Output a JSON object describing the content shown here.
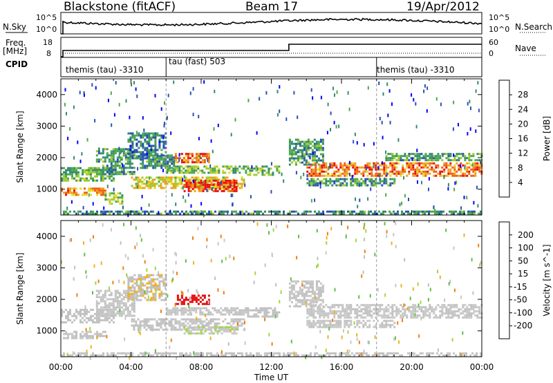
{
  "header": {
    "station": "Blackstone (fitACF)",
    "beam": "Beam 17",
    "date": "19/Apr/2012"
  },
  "meta_panel": {
    "nsky_label": "N.Sky",
    "nsearch_label": "N.Search",
    "freq_label": "Freq.",
    "freq_unit": "[MHz]",
    "nave_label": "Nave",
    "cpid_label": "CPID",
    "left_ticks": {
      "top": "10^5",
      "bottom": "10^0",
      "freq_top": "18",
      "freq_bottom": "8"
    },
    "right_ticks": {
      "top": "10^5",
      "bottom": "10^0",
      "nave_top": "60",
      "nave_bottom": "0"
    },
    "cpid_segments": [
      {
        "label": "themis (tau) -3310",
        "start_hour": 0
      },
      {
        "label": "tau (fast) 503",
        "start_hour": 6
      },
      {
        "label": "themis (tau) -3310",
        "start_hour": 18
      }
    ]
  },
  "chart_data": [
    {
      "type": "heatmap",
      "xlabel": "Time UT",
      "ylabel": "Slant Range [km]",
      "x_ticks": [
        "00:00",
        "04:00",
        "08:00",
        "12:00",
        "16:00",
        "20:00",
        "00:00"
      ],
      "xlim_hours": [
        0,
        24
      ],
      "y_ticks": [
        1000,
        2000,
        3000,
        4000
      ],
      "ylim": [
        180,
        4500
      ],
      "colorbar": {
        "label": "Power [dB]",
        "ticks": [
          "4",
          "8",
          "12",
          "16",
          "20",
          "24",
          "28"
        ],
        "range": [
          0,
          30
        ],
        "colors": [
          "#0000ff",
          "#2850b4",
          "#338a70",
          "#4ca84c",
          "#9ccc2c",
          "#e6d828",
          "#f0a020",
          "#f06010",
          "#e81010"
        ]
      },
      "bands": [
        {
          "t": [
            0.0,
            2.5
          ],
          "r": [
            850,
            1050
          ],
          "level": 22
        },
        {
          "t": [
            0.0,
            3.0
          ],
          "r": [
            1300,
            1700
          ],
          "level": 12
        },
        {
          "t": [
            2.0,
            4.2
          ],
          "r": [
            1500,
            2300
          ],
          "level": 10
        },
        {
          "t": [
            3.8,
            6.0
          ],
          "r": [
            2000,
            2800
          ],
          "level": 8
        },
        {
          "t": [
            2.5,
            3.5
          ],
          "r": [
            550,
            900
          ],
          "level": 14
        },
        {
          "t": [
            4.0,
            10.5
          ],
          "r": [
            1050,
            1400
          ],
          "level": 18
        },
        {
          "t": [
            7.0,
            10.0
          ],
          "r": [
            950,
            1300
          ],
          "level": 27
        },
        {
          "t": [
            4.5,
            6.5
          ],
          "r": [
            1700,
            2100
          ],
          "level": 9
        },
        {
          "t": [
            6.5,
            8.5
          ],
          "r": [
            1850,
            2150
          ],
          "level": 24
        },
        {
          "t": [
            6.0,
            10.5
          ],
          "r": [
            1500,
            1750
          ],
          "level": 14
        },
        {
          "t": [
            10.5,
            12.5
          ],
          "r": [
            1450,
            1750
          ],
          "level": 13
        },
        {
          "t": [
            13.0,
            15.0
          ],
          "r": [
            1800,
            2600
          ],
          "level": 10
        },
        {
          "t": [
            14.0,
            24.0
          ],
          "r": [
            1450,
            1850
          ],
          "level": 24
        },
        {
          "t": [
            14.0,
            19.0
          ],
          "r": [
            1150,
            1350
          ],
          "level": 10
        },
        {
          "t": [
            18.5,
            24.0
          ],
          "r": [
            1900,
            2150
          ],
          "level": 11
        },
        {
          "t": [
            0.0,
            24.0
          ],
          "r": [
            200,
            320
          ],
          "level": 9
        }
      ]
    },
    {
      "type": "heatmap",
      "xlabel": "Time UT",
      "ylabel": "Slant Range [km]",
      "x_ticks": [
        "00:00",
        "04:00",
        "08:00",
        "12:00",
        "16:00",
        "20:00",
        "00:00"
      ],
      "xlim_hours": [
        0,
        24
      ],
      "y_ticks": [
        1000,
        2000,
        3000,
        4000
      ],
      "ylim": [
        180,
        4500
      ],
      "colorbar": {
        "label": "Velocity [m s^-1]",
        "ticks": [
          "200",
          "100",
          "50",
          "15",
          "-15",
          "-50",
          "-100",
          "-200"
        ],
        "range": [
          -250,
          250
        ],
        "colors": [
          "#2040b0",
          "#309060",
          "#60c040",
          "#a0d840",
          "#c8c8c8",
          "#c0c0c0",
          "#f0b020",
          "#f08010",
          "#f03010",
          "#e80808"
        ]
      },
      "bands": [
        {
          "t": [
            0.0,
            2.5
          ],
          "r": [
            750,
            1000
          ],
          "level": 0
        },
        {
          "t": [
            0.0,
            3.0
          ],
          "r": [
            1300,
            1700
          ],
          "level": 30
        },
        {
          "t": [
            2.0,
            4.2
          ],
          "r": [
            1500,
            2300
          ],
          "level": 0
        },
        {
          "t": [
            3.8,
            6.0
          ],
          "r": [
            2000,
            2800
          ],
          "level": 40
        },
        {
          "t": [
            4.0,
            10.5
          ],
          "r": [
            1050,
            1400
          ],
          "level": 0
        },
        {
          "t": [
            7.0,
            10.0
          ],
          "r": [
            950,
            1150
          ],
          "level": -40
        },
        {
          "t": [
            6.5,
            8.5
          ],
          "r": [
            1850,
            2150
          ],
          "level": 220
        },
        {
          "t": [
            6.0,
            10.5
          ],
          "r": [
            1500,
            1750
          ],
          "level": 0
        },
        {
          "t": [
            10.5,
            12.5
          ],
          "r": [
            1450,
            1750
          ],
          "level": 30
        },
        {
          "t": [
            13.0,
            15.0
          ],
          "r": [
            1800,
            2600
          ],
          "level": 0
        },
        {
          "t": [
            14.0,
            24.0
          ],
          "r": [
            1450,
            1850
          ],
          "level": 0
        },
        {
          "t": [
            14.0,
            19.0
          ],
          "r": [
            1150,
            1350
          ],
          "level": 0
        },
        {
          "t": [
            0.0,
            24.0
          ],
          "r": [
            200,
            320
          ],
          "level": 0
        }
      ]
    }
  ]
}
